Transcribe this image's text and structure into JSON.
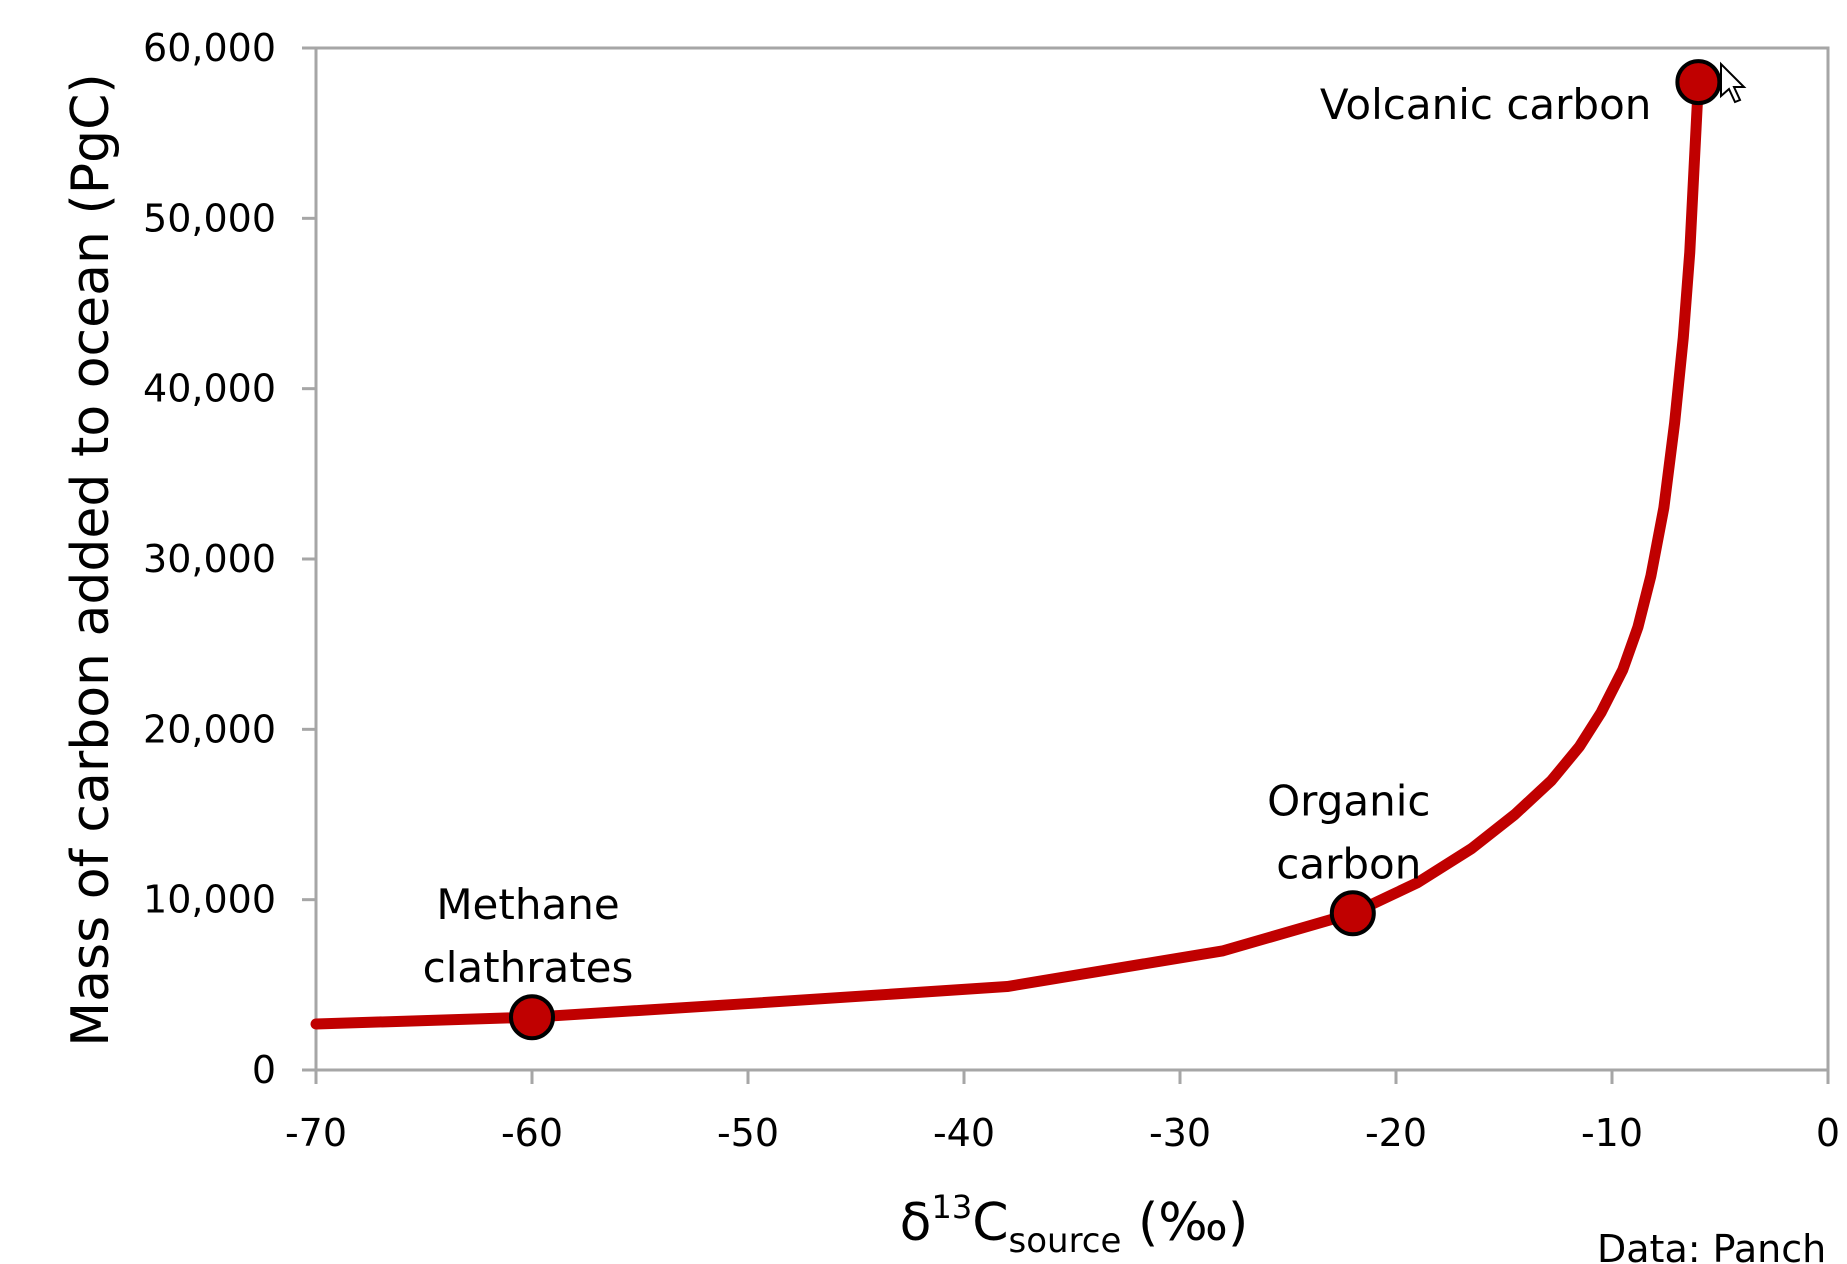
{
  "chart_data": {
    "type": "line",
    "title": "",
    "xlabel": {
      "prefix": "δ",
      "superscript": "13",
      "base": "C",
      "subscript": "source",
      "suffix": " (‰)"
    },
    "ylabel": "Mass of carbon added to ocean (PgC)",
    "xlim": [
      -70,
      0
    ],
    "ylim": [
      0,
      60000
    ],
    "x_ticks": [
      -70,
      -60,
      -50,
      -40,
      -30,
      -20,
      -10,
      0
    ],
    "x_tick_labels": [
      "-70",
      "-60",
      "-50",
      "-40",
      "-30",
      "-20",
      "-10",
      "0"
    ],
    "y_ticks": [
      0,
      10000,
      20000,
      30000,
      40000,
      50000,
      60000
    ],
    "y_tick_labels": [
      "0",
      "10,000",
      "20,000",
      "30,000",
      "40,000",
      "50,000",
      "60,000"
    ],
    "grid": false,
    "series": [
      {
        "color": "#c00000",
        "x": [
          -70,
          -60,
          -50,
          -38,
          -28,
          -22,
          -19,
          -16.5,
          -14.5,
          -12.8,
          -11.5,
          -10.5,
          -9.5,
          -8.8,
          -8.2,
          -7.6,
          -7.1,
          -6.7,
          -6.4,
          -6.2,
          -6
        ],
        "y": [
          2700,
          3100,
          3900,
          4900,
          7000,
          9200,
          11000,
          13000,
          15000,
          17000,
          19000,
          21000,
          23500,
          26000,
          29000,
          33000,
          38000,
          43000,
          48000,
          53000,
          58000
        ]
      }
    ],
    "highlighted_points": [
      {
        "label_lines": [
          "Methane",
          "clathrates"
        ],
        "x": -60,
        "y": 3100
      },
      {
        "label_lines": [
          "Organic",
          "carbon"
        ],
        "x": -22,
        "y": 9200
      },
      {
        "label_lines": [
          "Volcanic carbon"
        ],
        "x": -6,
        "y": 58000
      }
    ],
    "point_color": "#c00000",
    "credit": "Data: Panch"
  }
}
